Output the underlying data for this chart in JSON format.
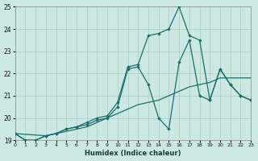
{
  "xlabel": "Humidex (Indice chaleur)",
  "bg_color": "#cce8e4",
  "grid_color": "#aaccbb",
  "line_color": "#1a7068",
  "xlim": [
    0,
    23
  ],
  "ylim": [
    19,
    25
  ],
  "xticks": [
    0,
    1,
    2,
    3,
    4,
    5,
    6,
    7,
    8,
    9,
    10,
    11,
    12,
    13,
    14,
    15,
    16,
    17,
    18,
    19,
    20,
    21,
    22,
    23
  ],
  "yticks": [
    19,
    20,
    21,
    22,
    23,
    24,
    25
  ],
  "line1_x": [
    0,
    1,
    2,
    3,
    4,
    5,
    6,
    7,
    8,
    9,
    10,
    11,
    12,
    13,
    14,
    15,
    16,
    17,
    18,
    19,
    20,
    21,
    22,
    23
  ],
  "line1_y": [
    19.3,
    19.0,
    19.0,
    19.2,
    19.3,
    19.4,
    19.5,
    19.6,
    19.8,
    20.0,
    20.2,
    20.4,
    20.6,
    20.7,
    20.8,
    21.0,
    21.2,
    21.4,
    21.5,
    21.6,
    21.8,
    21.8,
    21.8,
    21.8
  ],
  "line2_x": [
    0,
    1,
    2,
    3,
    4,
    5,
    6,
    7,
    8,
    9,
    10,
    11,
    12,
    13,
    14,
    15,
    16,
    17,
    18,
    19,
    20,
    21,
    22,
    23
  ],
  "line2_y": [
    19.3,
    19.0,
    19.0,
    19.2,
    19.3,
    19.5,
    19.6,
    19.7,
    19.9,
    20.0,
    20.5,
    22.2,
    22.3,
    21.5,
    20.0,
    19.5,
    22.5,
    23.5,
    21.0,
    20.8,
    22.2,
    21.5,
    21.0,
    20.8
  ],
  "line3_x": [
    0,
    3,
    4,
    5,
    6,
    7,
    8,
    9,
    10,
    11,
    12,
    13,
    14,
    15,
    16,
    17,
    18,
    19,
    20,
    21,
    22,
    23
  ],
  "line3_y": [
    19.3,
    19.2,
    19.3,
    19.5,
    19.6,
    19.8,
    20.0,
    20.1,
    20.7,
    22.3,
    22.4,
    23.7,
    23.8,
    24.0,
    25.0,
    23.7,
    23.5,
    20.8,
    22.2,
    21.5,
    21.0,
    20.8
  ]
}
